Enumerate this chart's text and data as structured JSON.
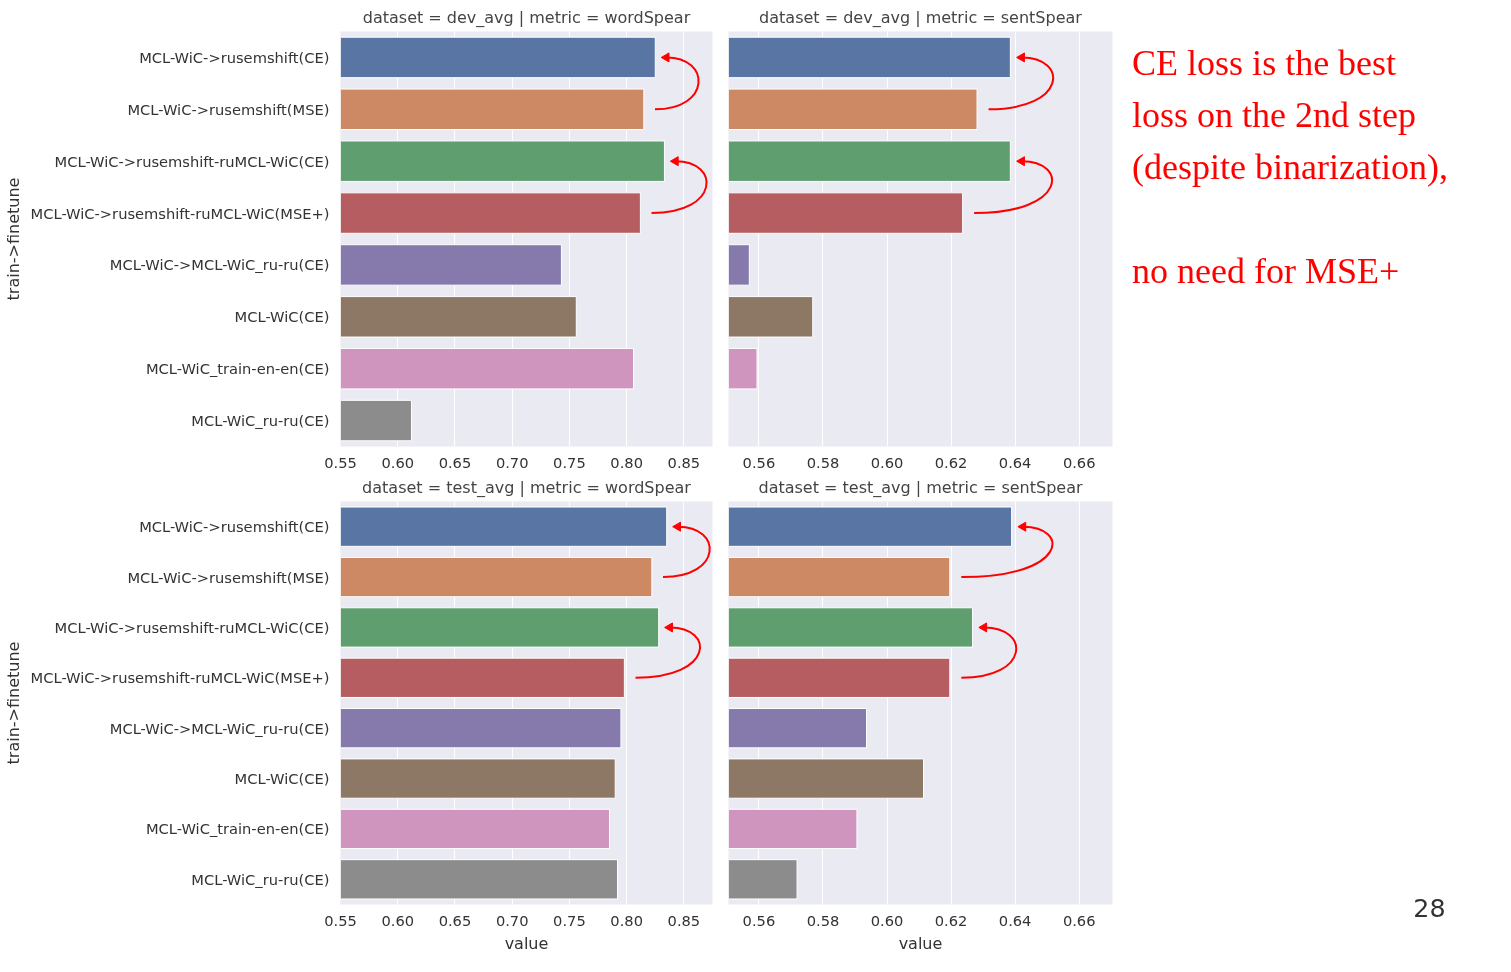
{
  "chart_data": [
    {
      "type": "bar",
      "orientation": "horizontal",
      "title": "dataset = dev_avg | metric = wordSpear",
      "ylabel": "train->finetune",
      "categories": [
        "MCL-WiC->rusemshift(CE)",
        "MCL-WiC->rusemshift(MSE)",
        "MCL-WiC->rusemshift-ruMCL-WiC(CE)",
        "MCL-WiC->rusemshift-ruMCL-WiC(MSE+)",
        "MCL-WiC->MCL-WiC_ru-ru(CE)",
        "MCL-WiC(CE)",
        "MCL-WiC_train-en-en(CE)",
        "MCL-WiC_ru-ru(CE)"
      ],
      "values": [
        0.825,
        0.815,
        0.833,
        0.812,
        0.743,
        0.756,
        0.806,
        0.612
      ],
      "colors": [
        "#5875a4",
        "#cc8963",
        "#5f9e6e",
        "#b55d60",
        "#857aab",
        "#8d7866",
        "#d095bf",
        "#8c8c8c"
      ],
      "xlim": [
        0.55,
        0.875
      ],
      "xticks": [
        0.55,
        {
          "value": 0.6,
          "label": "0.60"
        },
        0.65,
        {
          "value": 0.7,
          "label": "0.70"
        },
        0.75,
        {
          "value": 0.8,
          "label": "0.80"
        },
        0.85
      ],
      "grid": "x"
    },
    {
      "type": "bar",
      "orientation": "horizontal",
      "title": "dataset = dev_avg | metric = sentSpear",
      "categories": [
        null,
        null,
        null,
        null,
        null,
        null,
        null,
        null
      ],
      "values": [
        0.6385,
        0.6281,
        0.6385,
        0.6236,
        0.557,
        0.5768,
        0.5594,
        null
      ],
      "colors": [
        "#5875a4",
        "#cc8963",
        "#5f9e6e",
        "#b55d60",
        "#857aab",
        "#8d7866",
        "#d095bf",
        "#8c8c8c"
      ],
      "xlim": [
        0.5505,
        0.6704
      ],
      "xticks": [
        0.56,
        0.58,
        {
          "value": 0.6,
          "label": "0.60"
        },
        0.62,
        0.64,
        0.66
      ],
      "grid": "x",
      "tick_labels": "x"
    },
    {
      "type": "bar",
      "orientation": "horizontal",
      "title": "dataset = test_avg | metric = wordSpear",
      "xlabel": "value",
      "ylabel": "train->finetune",
      "categories": [
        "MCL-WiC->rusemshift(CE)",
        "MCL-WiC->rusemshift(MSE)",
        "MCL-WiC->rusemshift-ruMCL-WiC(CE)",
        "MCL-WiC->rusemshift-ruMCL-WiC(MSE+)",
        "MCL-WiC->MCL-WiC_ru-ru(CE)",
        "MCL-WiC(CE)",
        "MCL-WiC_train-en-en(CE)",
        "MCL-WiC_ru-ru(CE)"
      ],
      "values": [
        0.835,
        0.822,
        0.828,
        0.798,
        0.795,
        0.79,
        0.785,
        0.792
      ],
      "colors": [
        "#5875a4",
        "#cc8963",
        "#5f9e6e",
        "#b55d60",
        "#857aab",
        "#8d7866",
        "#d095bf",
        "#8c8c8c"
      ],
      "xlim": [
        0.55,
        0.875
      ],
      "xticks": [
        0.55,
        {
          "value": 0.6,
          "label": "0.60"
        },
        0.65,
        {
          "value": 0.7,
          "label": "0.70"
        },
        0.75,
        {
          "value": 0.8,
          "label": "0.80"
        },
        0.85
      ],
      "grid": "x"
    },
    {
      "type": "bar",
      "orientation": "horizontal",
      "title": "dataset = test_avg | metric = sentSpear",
      "xlabel": "value",
      "categories": [
        null,
        null,
        null,
        null,
        null,
        null,
        null,
        null
      ],
      "values": [
        0.6389,
        0.6196,
        0.6267,
        0.6196,
        0.5936,
        0.6114,
        0.5906,
        0.5719
      ],
      "colors": [
        "#5875a4",
        "#cc8963",
        "#5f9e6e",
        "#b55d60",
        "#857aab",
        "#8d7866",
        "#d095bf",
        "#8c8c8c"
      ],
      "xlim": [
        0.5505,
        0.6704
      ],
      "xticks": [
        0.56,
        0.58,
        {
          "value": 0.6,
          "label": "0.60"
        },
        0.62,
        0.64,
        0.66
      ],
      "grid": "x",
      "tick_labels": "x"
    },
    {
      "type": "other",
      "annotations": [
        "CE loss is the best\nloss on the 2nd step\n(despite binarization),\n\nno need for MSE+",
        "28"
      ]
    }
  ]
}
